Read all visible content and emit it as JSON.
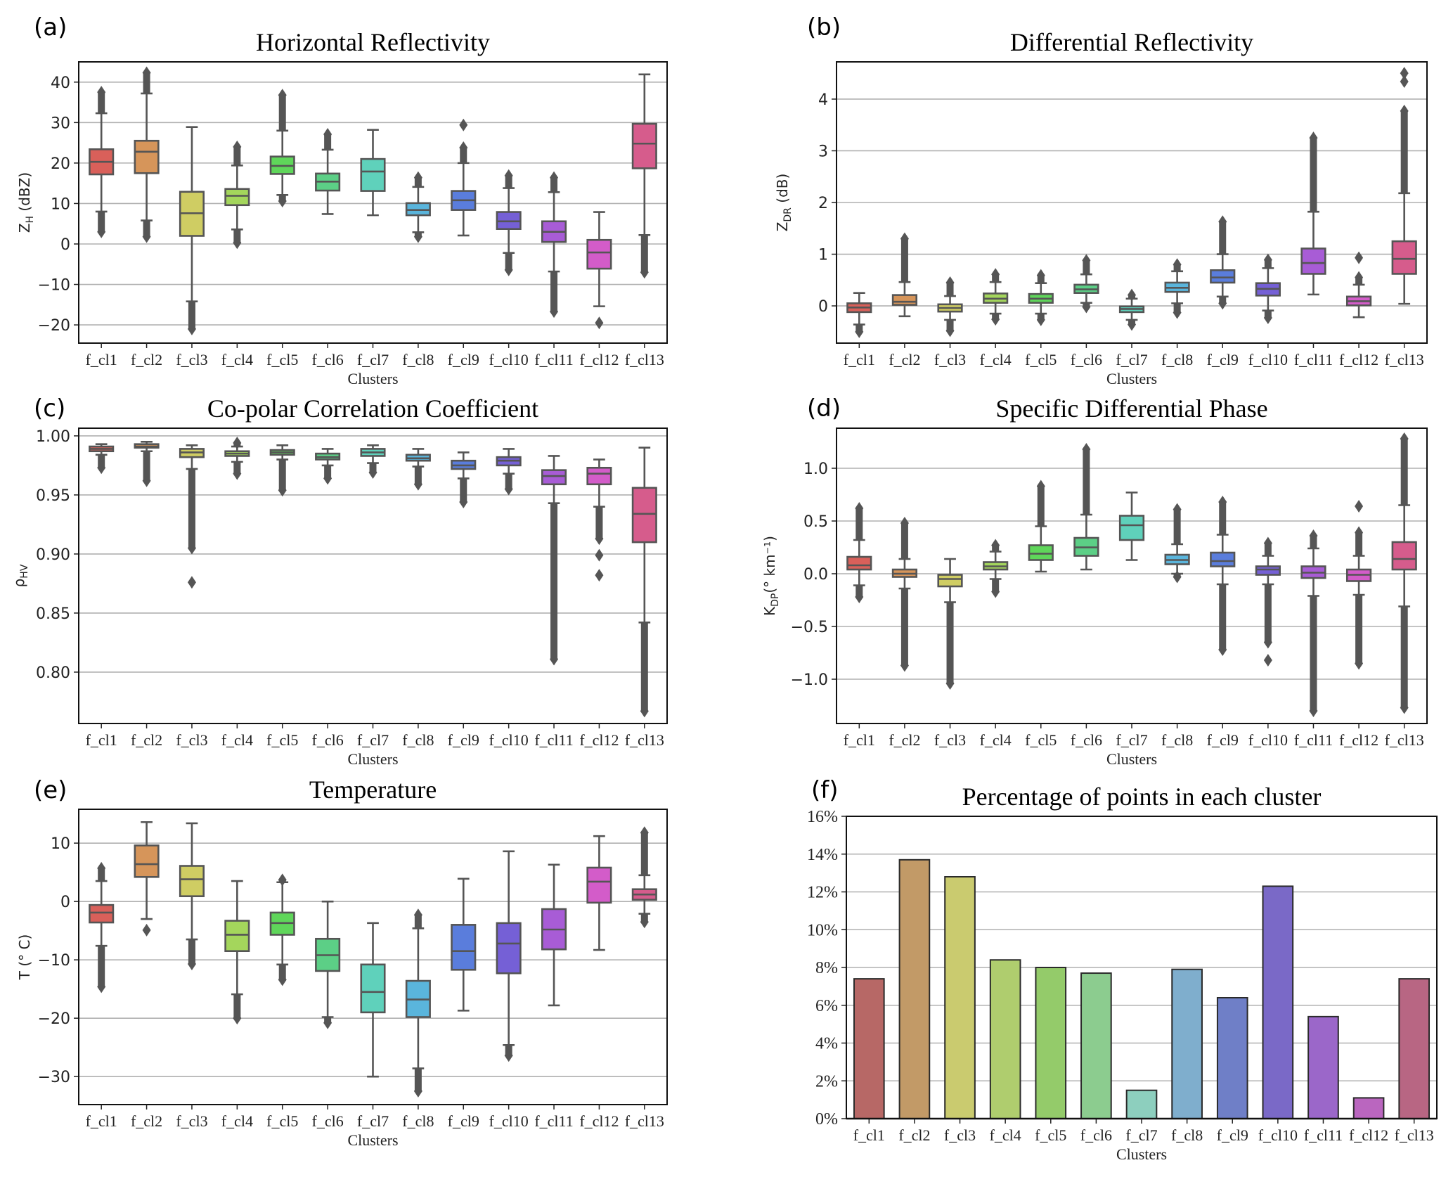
{
  "categories": [
    "f_cl1",
    "f_cl2",
    "f_cl3",
    "f_cl4",
    "f_cl5",
    "f_cl6",
    "f_cl7",
    "f_cl8",
    "f_cl9",
    "f_cl10",
    "f_cl11",
    "f_cl12",
    "f_cl13"
  ],
  "palette": [
    "#d9605a",
    "#d6955a",
    "#cfcd63",
    "#a4d65c",
    "#5fd65a",
    "#5ccf86",
    "#5fd1bb",
    "#5ab5dc",
    "#5a7ddc",
    "#7560d6",
    "#a85cd6",
    "#d35cc9",
    "#d65c8c"
  ],
  "bar_palette": [
    "#b76866",
    "#c29a67",
    "#cacb6f",
    "#afcd6e",
    "#94cb6a",
    "#8ccc8f",
    "#8dcfbe",
    "#7faecd",
    "#6f7fc7",
    "#7a69c7",
    "#9b67c9",
    "#ba66bf",
    "#b86683"
  ],
  "chart_data": [
    {
      "id": "a",
      "letter": "(a)",
      "type": "box",
      "title": "Horizontal Reflectivity",
      "xlabel": "Clusters",
      "ylabel_main": "Z",
      "ylabel_sub": "H",
      "ylabel_tail": " (dBZ)",
      "ylim": [
        -24.5,
        45
      ],
      "yticks": [
        -20,
        -10,
        0,
        10,
        20,
        30,
        40
      ],
      "ytick_labels": [
        "−20",
        "−10",
        "0",
        "10",
        "20",
        "30",
        "40"
      ],
      "grid": true,
      "boxes": [
        {
          "q1": 17.2,
          "median": 20.3,
          "q3": 23.4,
          "wlo": 8.0,
          "whi": 32.3,
          "out_lo": 3.0,
          "out_hi": 37.5
        },
        {
          "q1": 17.5,
          "median": 22.8,
          "q3": 25.5,
          "wlo": 5.8,
          "whi": 37.2,
          "out_lo": 1.8,
          "out_hi": 42.3
        },
        {
          "q1": 2.0,
          "median": 7.6,
          "q3": 12.9,
          "wlo": -14.2,
          "whi": 28.9,
          "out_lo": -21.0,
          "out_hi": null
        },
        {
          "q1": 9.6,
          "median": 11.9,
          "q3": 13.6,
          "wlo": 3.6,
          "whi": 19.4,
          "out_lo": 0.3,
          "out_hi": 24.0
        },
        {
          "q1": 17.3,
          "median": 19.3,
          "q3": 21.6,
          "wlo": 12.1,
          "whi": 28.0,
          "out_lo": 10.6,
          "out_hi": 36.8
        },
        {
          "q1": 13.2,
          "median": 15.4,
          "q3": 17.4,
          "wlo": 7.4,
          "whi": 23.3,
          "out_lo": null,
          "out_hi": 27.1
        },
        {
          "q1": 13.1,
          "median": 17.9,
          "q3": 21.0,
          "wlo": 7.1,
          "whi": 28.2,
          "out_lo": null,
          "out_hi": null
        },
        {
          "q1": 7.1,
          "median": 8.4,
          "q3": 10.1,
          "wlo": 2.9,
          "whi": 14.1,
          "out_lo": 1.8,
          "out_hi": 16.4
        },
        {
          "q1": 8.4,
          "median": 10.8,
          "q3": 13.1,
          "wlo": 2.1,
          "whi": 20.0,
          "out_lo": null,
          "out_hi": 23.8,
          "extra": [
            29.4
          ]
        },
        {
          "q1": 3.7,
          "median": 5.6,
          "q3": 7.9,
          "wlo": -2.2,
          "whi": 13.8,
          "out_lo": -6.4,
          "out_hi": 16.9
        },
        {
          "q1": 0.5,
          "median": 3.0,
          "q3": 5.6,
          "wlo": -6.8,
          "whi": 12.8,
          "out_lo": -16.7,
          "out_hi": 16.4
        },
        {
          "q1": -6.1,
          "median": -2.1,
          "q3": 1.0,
          "wlo": -15.4,
          "whi": 7.9,
          "out_lo": null,
          "out_hi": null,
          "extra": [
            -19.5
          ]
        },
        {
          "q1": 18.7,
          "median": 24.8,
          "q3": 29.7,
          "wlo": 2.2,
          "whi": 41.9,
          "out_lo": -7.0,
          "out_hi": null
        }
      ]
    },
    {
      "id": "b",
      "letter": "(b)",
      "type": "box",
      "title": "Differential Reflectivity",
      "xlabel": "Clusters",
      "ylabel_main": "Z",
      "ylabel_sub": "DR",
      "ylabel_tail": " (dB)",
      "ylim": [
        -0.72,
        4.72
      ],
      "yticks": [
        0,
        1,
        2,
        3,
        4
      ],
      "ytick_labels": [
        "0",
        "1",
        "2",
        "3",
        "4"
      ],
      "grid": true,
      "boxes": [
        {
          "q1": -0.12,
          "median": -0.03,
          "q3": 0.05,
          "wlo": null,
          "whi": 0.25,
          "out_lo": -0.5,
          "out_hi": null,
          "wlo_cap": -0.36
        },
        {
          "q1": 0.02,
          "median": 0.08,
          "q3": 0.21,
          "wlo": -0.2,
          "whi": 0.46,
          "out_lo": null,
          "out_hi": 1.3
        },
        {
          "q1": -0.11,
          "median": -0.04,
          "q3": 0.03,
          "wlo": -0.27,
          "whi": 0.19,
          "out_lo": -0.48,
          "out_hi": 0.45
        },
        {
          "q1": 0.06,
          "median": 0.14,
          "q3": 0.24,
          "wlo": -0.15,
          "whi": 0.46,
          "out_lo": -0.26,
          "out_hi": 0.61
        },
        {
          "q1": 0.06,
          "median": 0.14,
          "q3": 0.23,
          "wlo": -0.15,
          "whi": 0.44,
          "out_lo": -0.27,
          "out_hi": 0.59
        },
        {
          "q1": 0.25,
          "median": 0.32,
          "q3": 0.41,
          "wlo": 0.06,
          "whi": 0.61,
          "out_lo": -0.02,
          "out_hi": 0.88
        },
        {
          "q1": -0.12,
          "median": -0.06,
          "q3": -0.01,
          "wlo": -0.27,
          "whi": 0.14,
          "out_lo": -0.36,
          "out_hi": 0.21
        },
        {
          "q1": 0.27,
          "median": 0.35,
          "q3": 0.45,
          "wlo": 0.05,
          "whi": 0.67,
          "out_lo": -0.13,
          "out_hi": 0.8
        },
        {
          "q1": 0.45,
          "median": 0.55,
          "q3": 0.69,
          "wlo": 0.18,
          "whi": 1.0,
          "out_lo": 0.05,
          "out_hi": 1.63
        },
        {
          "q1": 0.2,
          "median": 0.33,
          "q3": 0.44,
          "wlo": -0.09,
          "whi": 0.73,
          "out_lo": -0.23,
          "out_hi": 0.89
        },
        {
          "q1": 0.62,
          "median": 0.83,
          "q3": 1.11,
          "wlo": 0.22,
          "whi": 1.82,
          "out_lo": null,
          "out_hi": 3.25
        },
        {
          "q1": 0.01,
          "median": 0.09,
          "q3": 0.18,
          "wlo": -0.22,
          "whi": 0.41,
          "out_lo": null,
          "out_hi": 0.55,
          "extra": [
            0.93
          ]
        },
        {
          "q1": 0.62,
          "median": 0.91,
          "q3": 1.25,
          "wlo": 0.04,
          "whi": 2.18,
          "out_lo": null,
          "out_hi": 3.77,
          "extra": [
            4.34,
            4.5
          ]
        }
      ]
    },
    {
      "id": "c",
      "letter": "(c)",
      "type": "box",
      "title": "Co-polar Correlation Coefficient",
      "xlabel": "Clusters",
      "ylabel_main": "ρ",
      "ylabel_sub": "HV",
      "ylabel_tail": "",
      "ylim": [
        0.7565,
        1.0065
      ],
      "yticks": [
        0.8,
        0.85,
        0.9,
        0.95,
        1.0
      ],
      "ytick_labels": [
        "0.80",
        "0.85",
        "0.90",
        "0.95",
        "1.00"
      ],
      "grid": true,
      "boxes": [
        {
          "q1": 0.987,
          "median": 0.989,
          "q3": 0.991,
          "wlo": 0.984,
          "whi": 0.993,
          "out_lo": 0.973,
          "out_hi": null
        },
        {
          "q1": 0.99,
          "median": 0.991,
          "q3": 0.993,
          "wlo": 0.987,
          "whi": 0.995,
          "out_lo": 0.962,
          "out_hi": null
        },
        {
          "q1": 0.982,
          "median": 0.986,
          "q3": 0.989,
          "wlo": 0.972,
          "whi": 0.992,
          "out_lo": 0.905,
          "out_hi": null,
          "extra": [
            0.876
          ]
        },
        {
          "q1": 0.983,
          "median": 0.985,
          "q3": 0.987,
          "wlo": 0.978,
          "whi": 0.991,
          "out_lo": 0.968,
          "out_hi": 0.994
        },
        {
          "q1": 0.984,
          "median": 0.986,
          "q3": 0.988,
          "wlo": 0.98,
          "whi": 0.992,
          "out_lo": 0.954,
          "out_hi": null
        },
        {
          "q1": 0.98,
          "median": 0.982,
          "q3": 0.985,
          "wlo": 0.975,
          "whi": 0.989,
          "out_lo": 0.964,
          "out_hi": null
        },
        {
          "q1": 0.983,
          "median": 0.986,
          "q3": 0.989,
          "wlo": 0.977,
          "whi": 0.992,
          "out_lo": 0.969,
          "out_hi": null
        },
        {
          "q1": 0.979,
          "median": 0.981,
          "q3": 0.984,
          "wlo": 0.974,
          "whi": 0.989,
          "out_lo": 0.959,
          "out_hi": null
        },
        {
          "q1": 0.972,
          "median": 0.975,
          "q3": 0.979,
          "wlo": 0.964,
          "whi": 0.986,
          "out_lo": 0.944,
          "out_hi": null
        },
        {
          "q1": 0.975,
          "median": 0.979,
          "q3": 0.982,
          "wlo": 0.968,
          "whi": 0.989,
          "out_lo": 0.955,
          "out_hi": null
        },
        {
          "q1": 0.959,
          "median": 0.966,
          "q3": 0.971,
          "wlo": 0.943,
          "whi": 0.983,
          "out_lo": 0.811,
          "out_hi": null
        },
        {
          "q1": 0.959,
          "median": 0.968,
          "q3": 0.973,
          "wlo": 0.94,
          "whi": 0.98,
          "out_lo": 0.913,
          "out_hi": null,
          "extra": [
            0.899,
            0.882
          ]
        },
        {
          "q1": 0.91,
          "median": 0.934,
          "q3": 0.956,
          "wlo": 0.842,
          "whi": 0.99,
          "out_lo": 0.767,
          "out_hi": null
        }
      ]
    },
    {
      "id": "d",
      "letter": "(d)",
      "type": "box",
      "title": "Specific Differential Phase",
      "xlabel": "Clusters",
      "ylabel_main": "K",
      "ylabel_sub": "DP",
      "ylabel_tail": "(° km⁻¹)",
      "ylim": [
        -1.42,
        1.38
      ],
      "yticks": [
        -1.0,
        -0.5,
        0.0,
        0.5,
        1.0
      ],
      "ytick_labels": [
        "−1.0",
        "−0.5",
        "0.0",
        "0.5",
        "1.0"
      ],
      "grid": true,
      "boxes": [
        {
          "q1": 0.04,
          "median": 0.08,
          "q3": 0.16,
          "wlo": -0.11,
          "whi": 0.32,
          "out_lo": -0.22,
          "out_hi": 0.62
        },
        {
          "q1": -0.03,
          "median": 0.0,
          "q3": 0.04,
          "wlo": -0.14,
          "whi": 0.14,
          "out_lo": -0.87,
          "out_hi": 0.48
        },
        {
          "q1": -0.12,
          "median": -0.05,
          "q3": -0.01,
          "wlo": -0.27,
          "whi": 0.14,
          "out_lo": -1.04,
          "out_hi": null
        },
        {
          "q1": 0.04,
          "median": 0.07,
          "q3": 0.11,
          "wlo": -0.05,
          "whi": 0.21,
          "out_lo": -0.17,
          "out_hi": 0.27
        },
        {
          "q1": 0.13,
          "median": 0.19,
          "q3": 0.27,
          "wlo": 0.02,
          "whi": 0.45,
          "out_lo": null,
          "out_hi": 0.83
        },
        {
          "q1": 0.17,
          "median": 0.25,
          "q3": 0.34,
          "wlo": 0.04,
          "whi": 0.56,
          "out_lo": null,
          "out_hi": 1.18
        },
        {
          "q1": 0.32,
          "median": 0.46,
          "q3": 0.55,
          "wlo": 0.13,
          "whi": 0.77,
          "out_lo": null,
          "out_hi": null
        },
        {
          "q1": 0.09,
          "median": 0.13,
          "q3": 0.18,
          "wlo": 0.0,
          "whi": 0.28,
          "out_lo": -0.03,
          "out_hi": 0.61
        },
        {
          "q1": 0.07,
          "median": 0.12,
          "q3": 0.2,
          "wlo": -0.1,
          "whi": 0.37,
          "out_lo": -0.72,
          "out_hi": 0.68
        },
        {
          "q1": -0.01,
          "median": 0.04,
          "q3": 0.07,
          "wlo": -0.1,
          "whi": 0.17,
          "out_lo": -0.65,
          "out_hi": 0.29,
          "extra": [
            -0.82
          ]
        },
        {
          "q1": -0.04,
          "median": 0.01,
          "q3": 0.07,
          "wlo": -0.21,
          "whi": 0.24,
          "out_lo": -1.3,
          "out_hi": 0.36
        },
        {
          "q1": -0.07,
          "median": -0.01,
          "q3": 0.04,
          "wlo": -0.2,
          "whi": 0.17,
          "out_lo": -0.85,
          "out_hi": 0.39,
          "extra": [
            0.64
          ]
        },
        {
          "q1": 0.04,
          "median": 0.14,
          "q3": 0.3,
          "wlo": -0.31,
          "whi": 0.65,
          "out_lo": -1.27,
          "out_hi": 1.28
        }
      ]
    },
    {
      "id": "e",
      "letter": "(e)",
      "type": "box",
      "title": "Temperature",
      "xlabel": "Clusters",
      "ylabel_main": "T",
      "ylabel_sub": "",
      "ylabel_tail": " (° C)",
      "ylim": [
        -34.8,
        15.8
      ],
      "yticks": [
        -30,
        -20,
        -10,
        0,
        10
      ],
      "ytick_labels": [
        "−30",
        "−20",
        "−10",
        "0",
        "10"
      ],
      "grid": true,
      "boxes": [
        {
          "q1": -3.6,
          "median": -1.9,
          "q3": -0.6,
          "wlo": -7.6,
          "whi": 3.5,
          "out_lo": -14.6,
          "out_hi": 5.7
        },
        {
          "q1": 4.2,
          "median": 6.4,
          "q3": 9.6,
          "wlo": -3.0,
          "whi": 13.6,
          "out_lo": null,
          "out_hi": null,
          "extra": [
            -4.9
          ]
        },
        {
          "q1": 0.9,
          "median": 3.8,
          "q3": 6.1,
          "wlo": -6.5,
          "whi": 13.4,
          "out_lo": -10.7,
          "out_hi": null
        },
        {
          "q1": -8.5,
          "median": -5.7,
          "q3": -3.3,
          "wlo": -15.9,
          "whi": 3.5,
          "out_lo": -20.0,
          "out_hi": null
        },
        {
          "q1": -5.7,
          "median": -3.7,
          "q3": -1.9,
          "wlo": -10.8,
          "whi": 3.3,
          "out_lo": -13.4,
          "out_hi": 3.7
        },
        {
          "q1": -11.9,
          "median": -9.2,
          "q3": -6.4,
          "wlo": -19.8,
          "whi": 0.0,
          "out_lo": -20.8,
          "out_hi": null
        },
        {
          "q1": -19.0,
          "median": -15.5,
          "q3": -10.8,
          "wlo": -30.0,
          "whi": -3.7,
          "out_lo": null,
          "out_hi": null
        },
        {
          "q1": -19.8,
          "median": -16.8,
          "q3": -13.6,
          "wlo": -28.6,
          "whi": -4.6,
          "out_lo": -32.5,
          "out_hi": -2.3
        },
        {
          "q1": -11.7,
          "median": -8.5,
          "q3": -4.0,
          "wlo": -18.7,
          "whi": 3.9,
          "out_lo": null,
          "out_hi": null
        },
        {
          "q1": -12.3,
          "median": -7.2,
          "q3": -3.7,
          "wlo": -24.6,
          "whi": 8.6,
          "out_lo": -26.4,
          "out_hi": null
        },
        {
          "q1": -8.2,
          "median": -4.8,
          "q3": -1.3,
          "wlo": -17.8,
          "whi": 6.3,
          "out_lo": null,
          "out_hi": null
        },
        {
          "q1": -0.2,
          "median": 3.4,
          "q3": 5.8,
          "wlo": -8.3,
          "whi": 11.2,
          "out_lo": null,
          "out_hi": null
        },
        {
          "q1": 0.3,
          "median": 1.2,
          "q3": 2.1,
          "wlo": -2.1,
          "whi": 4.5,
          "out_lo": -3.5,
          "out_hi": 11.8
        }
      ]
    },
    {
      "id": "f",
      "letter": "(f)",
      "type": "bar",
      "title": "Percentage of points in each cluster",
      "xlabel": "Clusters",
      "ylabel": "",
      "ylim": [
        0,
        16
      ],
      "yticks": [
        0,
        2,
        4,
        6,
        8,
        10,
        12,
        14,
        16
      ],
      "ytick_labels": [
        "0%",
        "2%",
        "4%",
        "6%",
        "8%",
        "10%",
        "12%",
        "14%",
        "16%"
      ],
      "grid": true,
      "values": [
        7.4,
        13.7,
        12.8,
        8.4,
        8.0,
        7.7,
        1.5,
        7.9,
        6.4,
        12.3,
        5.4,
        1.1,
        7.4
      ]
    }
  ]
}
